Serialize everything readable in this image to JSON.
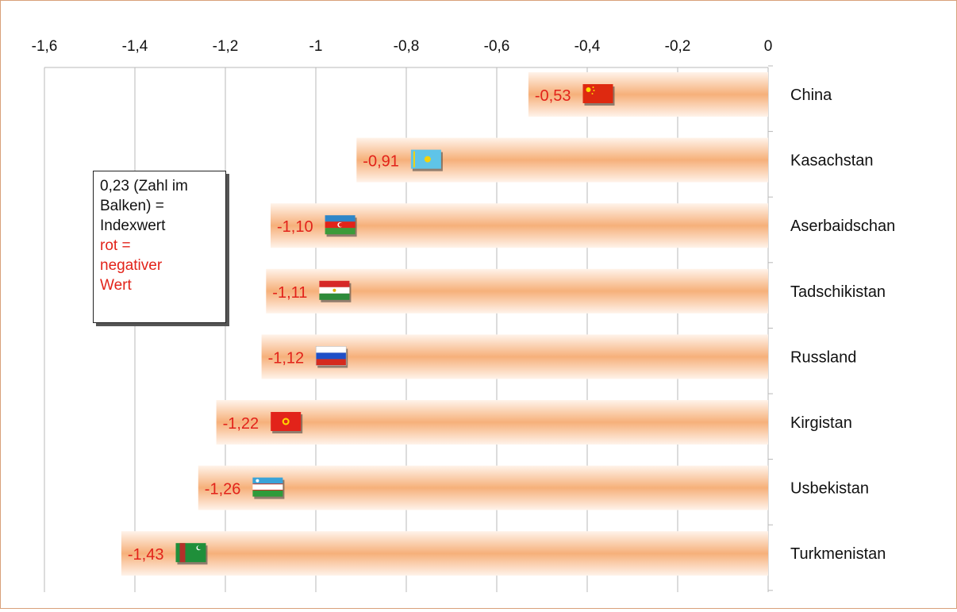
{
  "chart_data": {
    "type": "bar",
    "orientation": "horizontal",
    "categories": [
      "China",
      "Kasachstan",
      "Aserbaidschan",
      "Tadschikistan",
      "Russland",
      "Kirgistan",
      "Usbekistan",
      "Turkmenistan"
    ],
    "values": [
      -0.53,
      -0.91,
      -1.1,
      -1.11,
      -1.12,
      -1.22,
      -1.26,
      -1.43
    ],
    "value_labels": [
      "-0,53",
      "-0,91",
      "-1,10",
      "-1,11",
      "-1,12",
      "-1,22",
      "-1,26",
      "-1,43"
    ],
    "flags": [
      "flag-china-icon",
      "flag-kazakhstan-icon",
      "flag-azerbaijan-icon",
      "flag-tajikistan-icon",
      "flag-russia-icon",
      "flag-kyrgyzstan-icon",
      "flag-uzbekistan-icon",
      "flag-turkmenistan-icon"
    ],
    "xlim": [
      -1.6,
      0
    ],
    "x_ticks": [
      -1.6,
      -1.4,
      -1.2,
      -1,
      -0.8,
      -0.6,
      -0.4,
      -0.2,
      0
    ],
    "x_tick_labels": [
      "-1,6",
      "-1,4",
      "-1,2",
      "-1",
      "-0,8",
      "-0,6",
      "-0,4",
      "-0,2",
      "0"
    ],
    "axis_position": "top",
    "grid": true,
    "title": "",
    "xlabel": "",
    "ylabel": ""
  },
  "legend_note": {
    "line1": "0,23 (Zahl im",
    "line2": "Balken) =",
    "line3": "Indexwert",
    "line4": "rot =",
    "line5": "negativer",
    "line6": "Wert"
  },
  "colors": {
    "bar_light": "#fff3ea",
    "bar_dark": "#f6b07a",
    "negative_label": "#e2231a",
    "frame": "#d9a07a",
    "grid": "#b8b8b8"
  }
}
